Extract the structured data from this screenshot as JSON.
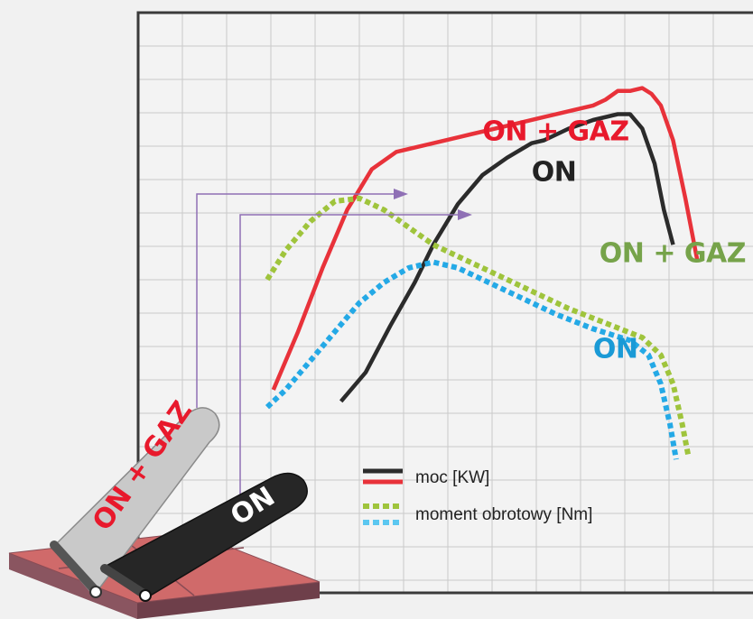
{
  "chart_data": {
    "type": "line",
    "x_range": [
      0,
      100
    ],
    "y_range": [
      0,
      100
    ],
    "grid": true,
    "legend_position": "bottom-center",
    "legend": [
      {
        "key": "power",
        "label": "moc [KW]",
        "style": "solid",
        "colors": [
          "#2b2b2b",
          "#e8323a"
        ]
      },
      {
        "key": "torque",
        "label": "moment obrotowy [Nm]",
        "style": "dotted",
        "colors": [
          "#9fc43c",
          "#5bc7f0"
        ]
      }
    ],
    "series": [
      {
        "key": "power_on_gaz",
        "label": "ON + GAZ",
        "color": "#e8323a",
        "style": "solid",
        "label_color": "#e8192c",
        "label_at": [
          56,
          78
        ],
        "points": [
          [
            22,
            35
          ],
          [
            26,
            45
          ],
          [
            30,
            56
          ],
          [
            34,
            66
          ],
          [
            38,
            73
          ],
          [
            42,
            76
          ],
          [
            48,
            77.5
          ],
          [
            54,
            79
          ],
          [
            60,
            80.5
          ],
          [
            66,
            82
          ],
          [
            70,
            83
          ],
          [
            74,
            84
          ],
          [
            76,
            85
          ],
          [
            78,
            86.5
          ],
          [
            80,
            86.5
          ],
          [
            82,
            87
          ],
          [
            83.5,
            86
          ],
          [
            85,
            84
          ],
          [
            87,
            78
          ],
          [
            89,
            68
          ],
          [
            91,
            57
          ]
        ]
      },
      {
        "key": "power_on",
        "label": "ON",
        "color": "#2b2b2b",
        "style": "solid",
        "label_color": "#222222",
        "label_at": [
          64,
          71
        ],
        "points": [
          [
            33,
            33
          ],
          [
            37,
            38
          ],
          [
            41,
            46
          ],
          [
            45,
            53.5
          ],
          [
            48,
            60
          ],
          [
            52,
            67
          ],
          [
            56,
            72
          ],
          [
            60,
            75
          ],
          [
            64,
            77.5
          ],
          [
            66,
            78
          ],
          [
            70,
            80
          ],
          [
            74,
            81.5
          ],
          [
            78,
            82.5
          ],
          [
            80,
            82.5
          ],
          [
            82,
            80
          ],
          [
            84,
            74
          ],
          [
            85.5,
            66
          ],
          [
            87,
            60
          ]
        ]
      },
      {
        "key": "torque_on_gaz",
        "label": "ON + GAZ",
        "color": "#9fc43c",
        "style": "dotted",
        "label_color": "#76a34a",
        "label_at": [
          75,
          57
        ],
        "points": [
          [
            21,
            54
          ],
          [
            24,
            59
          ],
          [
            28,
            64
          ],
          [
            32,
            67.5
          ],
          [
            36,
            68
          ],
          [
            40,
            66
          ],
          [
            44,
            63
          ],
          [
            48,
            60
          ],
          [
            52,
            58
          ],
          [
            58,
            55
          ],
          [
            64,
            52
          ],
          [
            70,
            49
          ],
          [
            76,
            46.5
          ],
          [
            82,
            44
          ],
          [
            85,
            41
          ],
          [
            87,
            36
          ],
          [
            88.5,
            29
          ],
          [
            89.5,
            23.5
          ]
        ]
      },
      {
        "key": "torque_on",
        "label": "ON",
        "color": "#24a9e6",
        "style": "dotted",
        "label_color": "#1a9ad6",
        "label_at": [
          74,
          40.5
        ],
        "points": [
          [
            21,
            32
          ],
          [
            24,
            35
          ],
          [
            28,
            40
          ],
          [
            32,
            45
          ],
          [
            36,
            50
          ],
          [
            40,
            53.5
          ],
          [
            44,
            56
          ],
          [
            48,
            57
          ],
          [
            52,
            56
          ],
          [
            56,
            54
          ],
          [
            62,
            51
          ],
          [
            68,
            48
          ],
          [
            74,
            45.5
          ],
          [
            80,
            43.5
          ],
          [
            83,
            41
          ],
          [
            85,
            36
          ],
          [
            86.5,
            29
          ],
          [
            87.5,
            23
          ]
        ]
      }
    ],
    "pedals": [
      {
        "label": "ON + GAZ",
        "color": "#e8192c",
        "arrow_target": "power_on_gaz"
      },
      {
        "label": "ON",
        "color": "#ffffff",
        "arrow_target": "power_on"
      }
    ]
  },
  "colors": {
    "frame": "#3a3a3a",
    "grid": "#c9c9c9",
    "arrow": "#8f70b5",
    "pedal_light": "#c9c9c9",
    "pedal_dark": "#262626",
    "base_top": "#d06a6a",
    "base_side": "#8a5560"
  }
}
